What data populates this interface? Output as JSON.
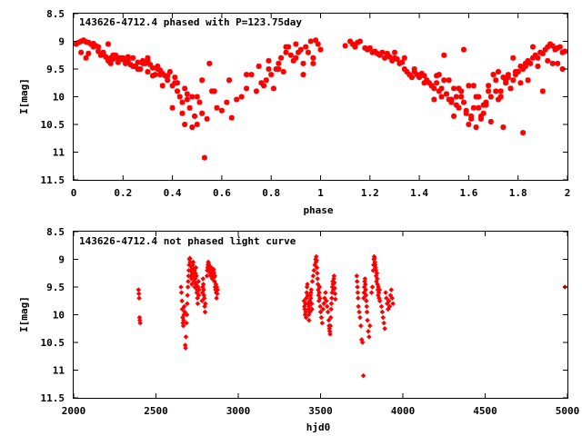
{
  "chart_data": [
    {
      "type": "scatter",
      "title": "143626-4712.4 phased with P=123.75day",
      "xlabel": "phase",
      "ylabel": "I[mag]",
      "xlim": [
        0,
        2
      ],
      "ylim": [
        11.5,
        8.5
      ],
      "y_inverted": true,
      "xticks": [
        "0",
        "0.2",
        "0.4",
        "0.6",
        "0.8",
        "1",
        "1.2",
        "1.4",
        "1.6",
        "1.8",
        "2"
      ],
      "yticks": [
        "8.5",
        "9",
        "9.5",
        "10",
        "10.5",
        "11",
        "11.5"
      ],
      "grid": false,
      "marker_color": "#ff0000",
      "marker": "asterisk",
      "series": [
        {
          "x": [
            0.02,
            0.03,
            0.04,
            0.05,
            0.06,
            0.07,
            0.08,
            0.09,
            0.1,
            0.01,
            0.03,
            0.05,
            0.06,
            0.08,
            0.1,
            0.11,
            0.12,
            0.13,
            0.14,
            0.15,
            0.16,
            0.17,
            0.18,
            0.19,
            0.2,
            0.21,
            0.22,
            0.23,
            0.24,
            0.25,
            0.26,
            0.27,
            0.28,
            0.29,
            0.3,
            0.31,
            0.32,
            0.33,
            0.34,
            0.35,
            0.36,
            0.37,
            0.38,
            0.39,
            0.4,
            0.41,
            0.42,
            0.43,
            0.44,
            0.45,
            0.46,
            0.47,
            0.48,
            0.49,
            0.5,
            0.51,
            0.52,
            0.53,
            0.54,
            0.55,
            0.56,
            0.58,
            0.6,
            0.62,
            0.64,
            0.66,
            0.68,
            0.7,
            0.72,
            0.74,
            0.76,
            0.77,
            0.78,
            0.79,
            0.8,
            0.81,
            0.82,
            0.83,
            0.84,
            0.85,
            0.86,
            0.87,
            0.88,
            0.89,
            0.9,
            0.91,
            0.92,
            0.93,
            0.94,
            0.95,
            0.96,
            0.97,
            0.98,
            0.99,
            1.0,
            0.12,
            0.18,
            0.22,
            0.26,
            0.3,
            0.34,
            0.38,
            0.42,
            0.46,
            0.5,
            0.15,
            0.25,
            0.35,
            0.45,
            0.48,
            0.52,
            0.2,
            0.28,
            0.4,
            0.44,
            0.36,
            0.16,
            0.24,
            0.32,
            0.14,
            0.3,
            0.41,
            0.57,
            0.63,
            0.7,
            0.75,
            0.79,
            0.83,
            0.86,
            0.9,
            0.93,
            0.97,
            1.1,
            1.12,
            1.13,
            1.14,
            1.15,
            1.16,
            1.18,
            1.19,
            1.2,
            1.21,
            1.22,
            1.23,
            1.24,
            1.25,
            1.26,
            1.27,
            1.28,
            1.29,
            1.3,
            1.31,
            1.32,
            1.33,
            1.34,
            1.35,
            1.36,
            1.37,
            1.38,
            1.39,
            1.4,
            1.41,
            1.42,
            1.43,
            1.44,
            1.45,
            1.46,
            1.47,
            1.48,
            1.49,
            1.5,
            1.51,
            1.52,
            1.53,
            1.54,
            1.55,
            1.56,
            1.57,
            1.58,
            1.59,
            1.6,
            1.61,
            1.62,
            1.63,
            1.64,
            1.65,
            1.66,
            1.67,
            1.68,
            1.69,
            1.7,
            1.71,
            1.72,
            1.73,
            1.74,
            1.75,
            1.76,
            1.77,
            1.78,
            1.79,
            1.8,
            1.81,
            1.82,
            1.83,
            1.84,
            1.85,
            1.86,
            1.87,
            1.88,
            1.89,
            1.9,
            1.91,
            1.92,
            1.93,
            1.94,
            1.95,
            1.96,
            1.97,
            1.98,
            1.99,
            1.45,
            1.47,
            1.49,
            1.51,
            1.53,
            1.55,
            1.57,
            1.59,
            1.61,
            1.63,
            1.65,
            1.67,
            1.69,
            1.71,
            1.73,
            1.75,
            1.77,
            1.79,
            1.81,
            1.83,
            1.48,
            1.52,
            1.56,
            1.6,
            1.64,
            1.68,
            1.72,
            1.76,
            1.8,
            1.84,
            1.88,
            1.92,
            1.96,
            1.5,
            1.58,
            1.66,
            1.74,
            1.82,
            1.9,
            1.98,
            1.94,
            1.86,
            1.78,
            1.7,
            1.62,
            1.54,
            1.46,
            1.42,
            1.38,
            1.34,
            1.3
          ],
          "y": [
            9.02,
            9.0,
            8.98,
            9.01,
            9.02,
            9.05,
            9.04,
            9.08,
            9.1,
            9.05,
            9.2,
            9.3,
            9.22,
            9.1,
            9.18,
            9.25,
            9.22,
            9.28,
            9.35,
            9.3,
            9.32,
            9.25,
            9.38,
            9.3,
            9.33,
            9.4,
            9.35,
            9.42,
            9.3,
            9.45,
            9.38,
            9.5,
            9.35,
            9.4,
            9.55,
            9.42,
            9.48,
            9.6,
            9.45,
            9.52,
            9.58,
            9.62,
            9.7,
            9.55,
            9.8,
            9.75,
            9.9,
            10.0,
            10.1,
            9.85,
            10.05,
            10.2,
            10.0,
            10.35,
            10.5,
            10.1,
            10.3,
            11.1,
            10.4,
            9.4,
            9.9,
            10.2,
            10.25,
            10.1,
            10.38,
            10.05,
            10.0,
            9.85,
            9.6,
            9.9,
            9.75,
            9.8,
            9.7,
            9.5,
            9.6,
            9.85,
            9.5,
            9.4,
            9.3,
            9.55,
            9.2,
            9.1,
            9.25,
            9.35,
            9.05,
            9.2,
            9.15,
            9.4,
            9.1,
            9.2,
            9.0,
            9.3,
            8.98,
            9.05,
            9.15,
            9.2,
            9.3,
            9.28,
            9.5,
            9.35,
            9.5,
            9.62,
            9.75,
            9.95,
            10.0,
            9.4,
            9.45,
            9.6,
            10.5,
            10.55,
            9.7,
            9.3,
            9.4,
            10.2,
            10.3,
            9.8,
            9.25,
            9.45,
            9.62,
            9.05,
            9.3,
            9.65,
            9.9,
            9.7,
            9.6,
            9.45,
            9.35,
            9.5,
            9.1,
            9.3,
            9.6,
            9.4,
            9.08,
            9.0,
            9.05,
            9.1,
            9.02,
            9.0,
            9.12,
            9.15,
            9.12,
            9.2,
            9.18,
            9.22,
            9.25,
            9.2,
            9.3,
            9.22,
            9.28,
            9.35,
            9.3,
            9.32,
            9.4,
            9.38,
            9.5,
            9.55,
            9.6,
            9.65,
            9.55,
            9.6,
            9.65,
            9.58,
            9.62,
            9.7,
            9.75,
            9.8,
            9.85,
            9.62,
            9.9,
            10.0,
            9.7,
            9.95,
            10.05,
            10.1,
            9.85,
            10.0,
            10.2,
            9.9,
            10.1,
            10.3,
            10.5,
            10.35,
            10.2,
            10.0,
            10.2,
            10.4,
            10.3,
            10.1,
            9.8,
            10.0,
            9.6,
            9.7,
            9.55,
            9.9,
            9.65,
            9.75,
            9.6,
            9.85,
            9.7,
            9.6,
            9.55,
            9.45,
            9.5,
            9.4,
            9.35,
            9.4,
            9.3,
            9.25,
            9.3,
            9.2,
            9.22,
            9.15,
            9.1,
            9.05,
            9.08,
            9.15,
            9.12,
            9.1,
            9.2,
            9.18,
            9.8,
            9.75,
            9.85,
            9.95,
            10.05,
            10.15,
            10.0,
            10.25,
            10.4,
            10.55,
            10.35,
            10.15,
            10.45,
            9.9,
            10.0,
            9.7,
            9.85,
            9.55,
            9.75,
            9.45,
            9.6,
            9.7,
            9.85,
            9.8,
            10.0,
            9.9,
            10.05,
            9.65,
            9.55,
            9.7,
            9.45,
            9.35,
            9.4,
            9.25,
            9.15,
            10.15,
            10.55,
            10.65,
            9.9,
            9.5,
            9.4,
            9.1,
            9.3,
            9.6,
            9.8,
            10.35,
            10.05,
            9.75,
            9.5,
            9.3,
            9.2
          ]
        }
      ]
    },
    {
      "type": "scatter",
      "title": "143626-4712.4 not phased light curve",
      "xlabel": "hjd0",
      "ylabel": "I[mag]",
      "xlim": [
        2000,
        5000
      ],
      "ylim": [
        11.5,
        8.5
      ],
      "y_inverted": true,
      "xticks": [
        "2000",
        "2500",
        "3000",
        "3500",
        "4000",
        "4500",
        "5000"
      ],
      "yticks": [
        "8.5",
        "9",
        "9.5",
        "10",
        "10.5",
        "11",
        "11.5"
      ],
      "grid": false,
      "marker_color": "#ff0000",
      "marker": "diamond",
      "series": [
        {
          "x": [
            2394,
            2396,
            2398,
            2400,
            2402,
            2404,
            2652,
            2655,
            2658,
            2660,
            2662,
            2664,
            2666,
            2668,
            2670,
            2672,
            2675,
            2678,
            2680,
            2682,
            2685,
            2688,
            2690,
            2692,
            2694,
            2696,
            2698,
            2700,
            2702,
            2704,
            2706,
            2708,
            2710,
            2712,
            2714,
            2716,
            2718,
            2720,
            2722,
            2724,
            2726,
            2728,
            2730,
            2732,
            2734,
            2736,
            2738,
            2740,
            2742,
            2744,
            2746,
            2748,
            2750,
            2752,
            2754,
            2756,
            2758,
            2760,
            2762,
            2780,
            2782,
            2784,
            2786,
            2788,
            2790,
            2792,
            2794,
            2796,
            2798,
            2800,
            2810,
            2812,
            2814,
            2816,
            2818,
            2820,
            2822,
            2824,
            2826,
            2828,
            2830,
            2832,
            2834,
            2836,
            2838,
            2840,
            2842,
            2844,
            2846,
            2848,
            2850,
            2852,
            2854,
            2856,
            2858,
            2860,
            2862,
            2864,
            2866,
            2868,
            2870,
            2872,
            2874,
            3400,
            3402,
            3404,
            3406,
            3408,
            3410,
            3412,
            3414,
            3416,
            3418,
            3420,
            3422,
            3424,
            3426,
            3428,
            3430,
            3432,
            3434,
            3436,
            3438,
            3440,
            3442,
            3444,
            3446,
            3448,
            3450,
            3455,
            3460,
            3465,
            3470,
            3472,
            3474,
            3476,
            3478,
            3480,
            3482,
            3484,
            3486,
            3488,
            3490,
            3492,
            3494,
            3496,
            3498,
            3500,
            3505,
            3510,
            3515,
            3520,
            3525,
            3530,
            3535,
            3540,
            3545,
            3550,
            3552,
            3554,
            3556,
            3558,
            3560,
            3562,
            3564,
            3566,
            3568,
            3570,
            3572,
            3574,
            3576,
            3578,
            3580,
            3582,
            3584,
            3586,
            3588,
            3590,
            3720,
            3722,
            3724,
            3726,
            3728,
            3730,
            3735,
            3740,
            3745,
            3750,
            3755,
            3760,
            3762,
            3764,
            3766,
            3768,
            3770,
            3772,
            3774,
            3776,
            3778,
            3780,
            3782,
            3785,
            3790,
            3795,
            3800,
            3810,
            3815,
            3820,
            3822,
            3824,
            3826,
            3828,
            3830,
            3832,
            3834,
            3836,
            3838,
            3840,
            3842,
            3844,
            3846,
            3848,
            3850,
            3852,
            3854,
            3856,
            3858,
            3860,
            3870,
            3875,
            3880,
            3885,
            3890,
            3895,
            3900,
            3905,
            3910,
            3915,
            3920,
            3925,
            3930,
            3935,
            3940,
            4985
          ],
          "y": [
            9.55,
            9.62,
            9.7,
            10.05,
            10.1,
            10.15,
            9.5,
            9.6,
            9.75,
            9.9,
            10.05,
            10.15,
            10.2,
            10.1,
            10.0,
            9.85,
            9.95,
            10.55,
            10.6,
            10.4,
            10.15,
            10.0,
            9.8,
            9.65,
            9.5,
            9.4,
            9.3,
            9.2,
            9.1,
            9.0,
            8.98,
            9.05,
            9.12,
            9.2,
            9.3,
            9.35,
            9.45,
            9.25,
            9.15,
            9.1,
            9.05,
            9.22,
            9.3,
            9.4,
            9.2,
            9.5,
            9.35,
            9.25,
            9.15,
            9.45,
            9.3,
            9.6,
            9.55,
            9.7,
            9.8,
            9.5,
            9.4,
            9.65,
            9.55,
            9.75,
            9.6,
            9.5,
            9.35,
            9.45,
            9.55,
            9.65,
            9.7,
            9.85,
            9.95,
            9.8,
            9.3,
            9.2,
            9.15,
            9.1,
            9.05,
            9.08,
            9.15,
            9.2,
            9.12,
            9.25,
            9.18,
            9.22,
            9.3,
            9.15,
            9.2,
            9.28,
            9.35,
            9.25,
            9.3,
            9.22,
            9.18,
            9.25,
            9.32,
            9.4,
            9.3,
            9.5,
            9.55,
            9.45,
            9.6,
            9.7,
            9.5,
            9.62,
            9.55,
            9.75,
            9.85,
            9.9,
            10.0,
            9.8,
            9.95,
            10.05,
            9.7,
            9.6,
            9.5,
            9.45,
            9.65,
            9.8,
            9.9,
            10.0,
            10.1,
            9.85,
            9.75,
            9.95,
            9.65,
            9.7,
            9.6,
            9.55,
            9.8,
            9.9,
            9.4,
            9.3,
            9.2,
            9.1,
            9.0,
            9.05,
            8.95,
            9.02,
            9.15,
            9.25,
            9.35,
            9.45,
            9.55,
            9.65,
            9.75,
            9.6,
            9.5,
            9.7,
            9.85,
            9.95,
            10.05,
            10.15,
            9.9,
            9.8,
            9.7,
            9.6,
            9.75,
            9.85,
            9.95,
            10.1,
            10.2,
            10.25,
            10.3,
            10.35,
            10.2,
            10.05,
            9.9,
            9.8,
            9.7,
            9.6,
            9.5,
            9.4,
            9.45,
            9.55,
            9.35,
            9.3,
            9.42,
            9.52,
            9.62,
            9.72,
            9.3,
            9.4,
            9.5,
            9.6,
            9.7,
            9.85,
            9.95,
            10.05,
            10.2,
            10.45,
            10.5,
            11.1,
            9.7,
            9.6,
            9.5,
            9.4,
            9.35,
            9.45,
            9.55,
            9.65,
            9.75,
            9.85,
            9.95,
            10.1,
            10.3,
            10.4,
            10.2,
            9.6,
            9.5,
            9.2,
            9.1,
            9.0,
            8.95,
            8.98,
            9.05,
            9.1,
            9.15,
            9.2,
            9.3,
            9.4,
            9.25,
            9.35,
            9.45,
            9.55,
            9.65,
            9.5,
            9.6,
            9.7,
            9.55,
            9.75,
            9.85,
            9.95,
            10.05,
            10.15,
            10.25,
            9.6,
            9.7,
            9.8,
            9.9,
            9.75,
            9.85,
            9.65,
            9.55,
            9.7,
            9.8,
            9.5
          ]
        }
      ]
    }
  ]
}
